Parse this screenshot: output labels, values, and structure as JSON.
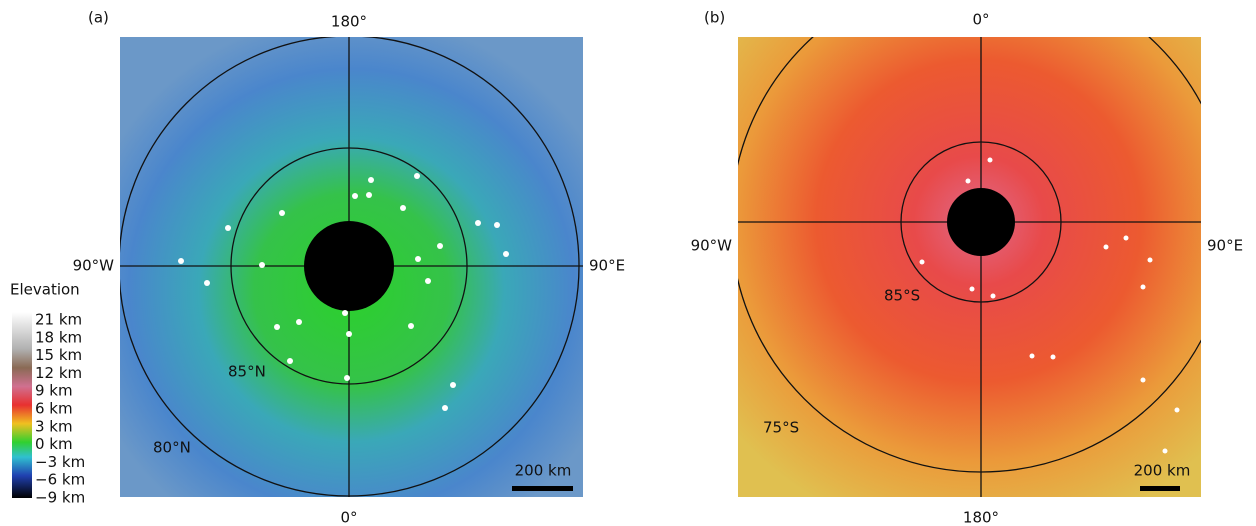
{
  "panels": [
    {
      "label": "(a)",
      "top": "180°",
      "bottom": "0°",
      "left": "90°W",
      "right": "90°E",
      "circle_labels": [
        "85°N",
        "80°N"
      ],
      "scale_bar": "200 km"
    },
    {
      "label": "(b)",
      "top": "0°",
      "bottom": "180°",
      "left": "90°W",
      "right": "90°E",
      "circle_labels": [
        "85°S",
        "75°S"
      ],
      "scale_bar": "200 km"
    }
  ],
  "colorbar": {
    "title": "Elevation",
    "labels": [
      "21 km",
      "18 km",
      "15 km",
      "12 km",
      "9 km",
      "6 km",
      "3 km",
      "0 km",
      "−3 km",
      "−6 km",
      "−9 km"
    ]
  }
}
